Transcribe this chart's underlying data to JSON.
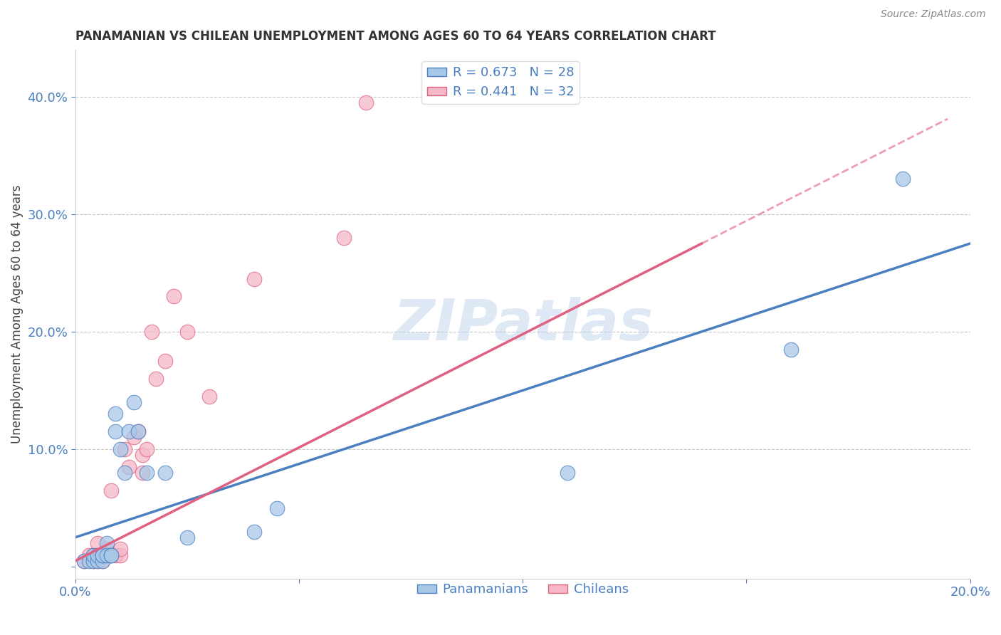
{
  "title": "PANAMANIAN VS CHILEAN UNEMPLOYMENT AMONG AGES 60 TO 64 YEARS CORRELATION CHART",
  "source": "Source: ZipAtlas.com",
  "ylabel": "Unemployment Among Ages 60 to 64 years",
  "xlim": [
    0.0,
    0.2
  ],
  "ylim": [
    -0.01,
    0.44
  ],
  "blue_R": 0.673,
  "blue_N": 28,
  "pink_R": 0.441,
  "pink_N": 32,
  "blue_color": "#a8c8e8",
  "pink_color": "#f5b8c8",
  "blue_line_color": "#4a7fc0",
  "pink_line_color": "#e06080",
  "grid_color": "#c8c8c8",
  "watermark": "ZIPatlas",
  "blue_scatter_x": [
    0.002,
    0.003,
    0.004,
    0.004,
    0.005,
    0.005,
    0.006,
    0.006,
    0.006,
    0.007,
    0.007,
    0.008,
    0.008,
    0.009,
    0.009,
    0.01,
    0.011,
    0.012,
    0.013,
    0.014,
    0.016,
    0.02,
    0.025,
    0.04,
    0.045,
    0.11,
    0.16,
    0.185
  ],
  "blue_scatter_y": [
    0.005,
    0.005,
    0.005,
    0.01,
    0.005,
    0.01,
    0.005,
    0.01,
    0.01,
    0.02,
    0.01,
    0.01,
    0.01,
    0.115,
    0.13,
    0.1,
    0.08,
    0.115,
    0.14,
    0.115,
    0.08,
    0.08,
    0.025,
    0.03,
    0.05,
    0.08,
    0.185,
    0.33
  ],
  "pink_scatter_x": [
    0.002,
    0.003,
    0.004,
    0.004,
    0.005,
    0.005,
    0.005,
    0.006,
    0.006,
    0.007,
    0.007,
    0.008,
    0.008,
    0.009,
    0.01,
    0.01,
    0.011,
    0.012,
    0.013,
    0.014,
    0.015,
    0.015,
    0.016,
    0.017,
    0.018,
    0.02,
    0.022,
    0.025,
    0.03,
    0.04,
    0.06,
    0.065
  ],
  "pink_scatter_y": [
    0.005,
    0.01,
    0.005,
    0.01,
    0.005,
    0.01,
    0.02,
    0.005,
    0.01,
    0.01,
    0.015,
    0.01,
    0.065,
    0.01,
    0.01,
    0.015,
    0.1,
    0.085,
    0.11,
    0.115,
    0.08,
    0.095,
    0.1,
    0.2,
    0.16,
    0.175,
    0.23,
    0.2,
    0.145,
    0.245,
    0.28,
    0.395
  ],
  "blue_line_x0": 0.0,
  "blue_line_y0": 0.025,
  "blue_line_x1": 0.2,
  "blue_line_y1": 0.275,
  "pink_line_x0": 0.0,
  "pink_line_y0": 0.005,
  "pink_line_x1": 0.14,
  "pink_line_y1": 0.275
}
